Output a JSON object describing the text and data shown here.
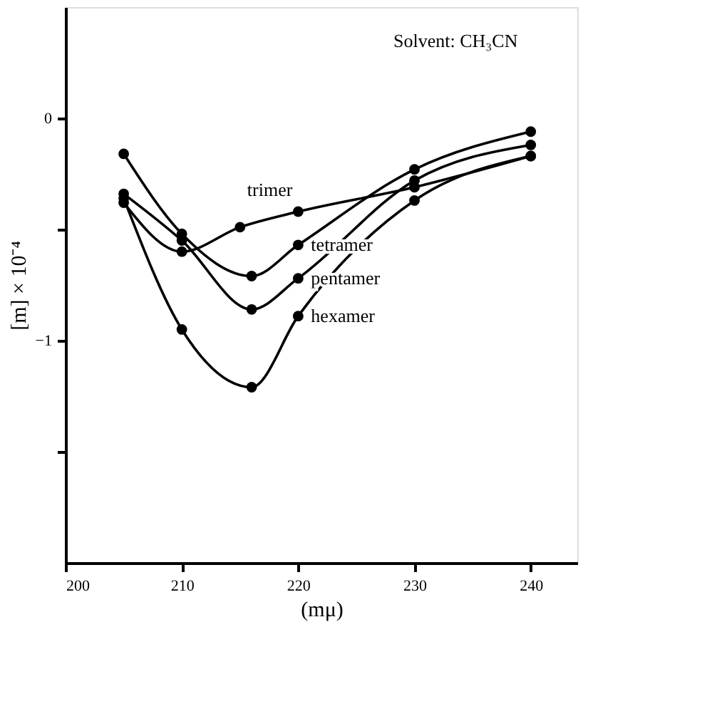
{
  "chart_data": {
    "type": "line",
    "xlabel": "(mμ)",
    "ylabel": "[m] × 10⁻⁴",
    "annotations": [
      "Solvent: CH₃CN"
    ],
    "xlim": [
      200,
      244
    ],
    "xticks": [
      200,
      210,
      220,
      230,
      240
    ],
    "ylim": [
      -2,
      0.5
    ],
    "yticks": [
      0,
      {
        "value": -0.5,
        "label": null
      },
      {
        "value": -1,
        "label": "−1"
      },
      {
        "value": -1.5,
        "label": null
      }
    ],
    "grid": false,
    "marker": "circle",
    "line_style": "solid",
    "series": [
      {
        "name": "trimer",
        "color": "#000000",
        "x": [
          205,
          210,
          215,
          220,
          230,
          240
        ],
        "values": [
          -0.38,
          -0.6,
          -0.49,
          -0.42,
          -0.31,
          -0.17
        ]
      },
      {
        "name": "tetramer",
        "color": "#000000",
        "x": [
          205,
          210,
          216,
          220,
          230,
          240
        ],
        "values": [
          -0.16,
          -0.52,
          -0.71,
          -0.57,
          -0.23,
          -0.06
        ]
      },
      {
        "name": "pentamer",
        "color": "#000000",
        "x": [
          205,
          210,
          216,
          220,
          230,
          240
        ],
        "values": [
          -0.34,
          -0.55,
          -0.86,
          -0.72,
          -0.28,
          -0.12
        ]
      },
      {
        "name": "hexamer",
        "color": "#000000",
        "x": [
          205,
          210,
          216,
          220,
          230,
          240
        ],
        "values": [
          -0.36,
          -0.95,
          -1.21,
          -0.89,
          -0.37,
          -0.17
        ]
      }
    ]
  }
}
